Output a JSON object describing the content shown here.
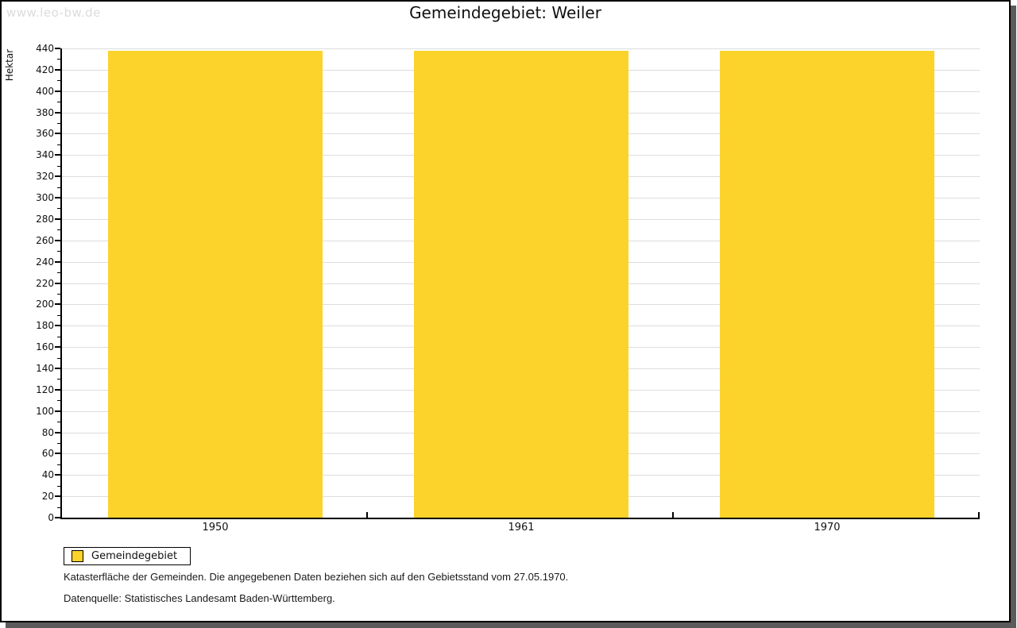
{
  "page": {
    "watermark": "www.leo-bw.de",
    "title": "Gemeindegebiet: Weiler"
  },
  "chart_data": {
    "type": "bar",
    "title": "Gemeindegebiet: Weiler",
    "categories": [
      "1950",
      "1961",
      "1970"
    ],
    "series": [
      {
        "name": "Gemeindegebiet",
        "color": "#FBD32B",
        "values": [
          438,
          438,
          438
        ]
      }
    ],
    "xlabel": "",
    "ylabel": "Hektar",
    "ylim": [
      0,
      440
    ],
    "ytick_step": 20,
    "yminor_step": 10,
    "grid": true,
    "legend_position": "bottom-left",
    "bar_width_fraction": 0.7
  },
  "legend": {
    "items": [
      {
        "label": "Gemeindegebiet",
        "color": "#FBD32B"
      }
    ]
  },
  "footnotes": [
    "Katasterfläche der Gemeinden. Die angegebenen Daten beziehen sich auf den Gebietsstand vom 27.05.1970.",
    "Datenquelle: Statistisches Landesamt Baden-Württemberg."
  ],
  "colors": {
    "bar": "#FBD32B",
    "gridline": "#DDDDDD",
    "axis": "#000000",
    "watermark": "#DCDCDC",
    "frame_shadow": "#5B5B5B",
    "background": "#FFFFFF"
  }
}
